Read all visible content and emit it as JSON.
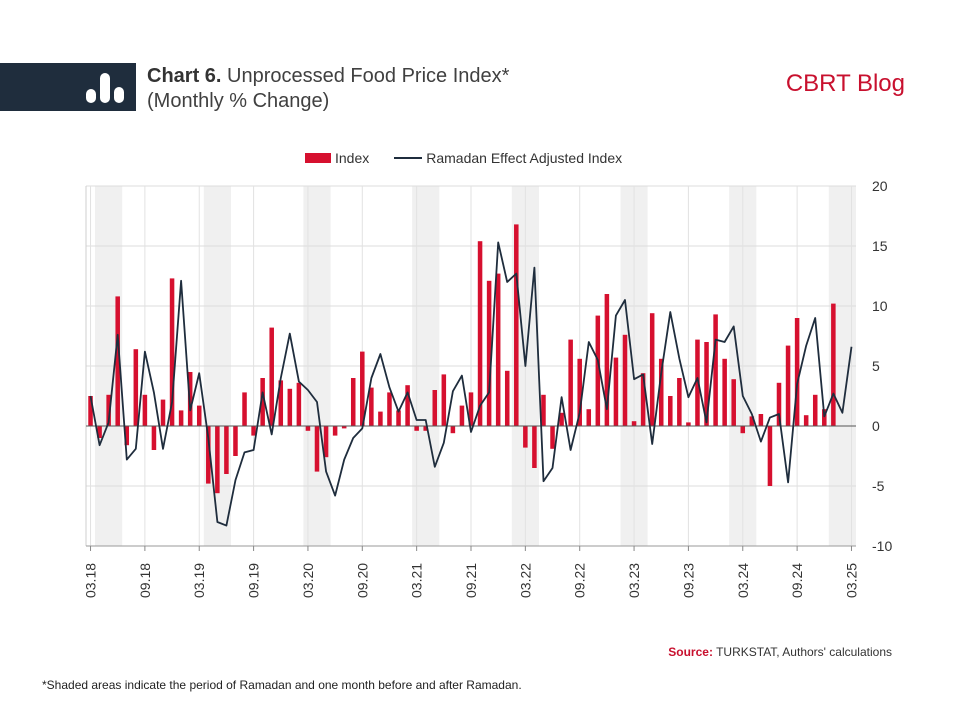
{
  "header": {
    "chart_number": "Chart 6.",
    "title": "Unprocessed Food Price Index*",
    "subtitle": "(Monthly % Change)",
    "brand": "CBRT Blog",
    "icon": "bar-chart-icon"
  },
  "legend": {
    "index_label": "Index",
    "adjusted_label": "Ramadan Effect Adjusted Index"
  },
  "footer": {
    "source_label": "Source:",
    "source_text": "TURKSTAT, Authors' calculations",
    "footnote": "*Shaded areas indicate the period of Ramadan and one month before and after Ramadan."
  },
  "colors": {
    "bars": "#d6102f",
    "line": "#1f2d3d",
    "shade": "#f0f0f0",
    "header_bar": "#1f2d3d",
    "brand": "#c8102e"
  },
  "chart_data": {
    "type": "bar",
    "x_start": "2018-03",
    "x_end": "2025-03",
    "ylim": [
      -10,
      20
    ],
    "yticks": [
      20,
      15,
      10,
      5,
      0,
      -5,
      -10
    ],
    "y_axis_side": "right",
    "grid": true,
    "legend_position": "top-center",
    "xtick_labels": [
      "03.18",
      "09.18",
      "03.19",
      "09.19",
      "03.20",
      "09.20",
      "03.21",
      "09.21",
      "03.22",
      "09.22",
      "03.23",
      "09.23",
      "03.24",
      "09.24",
      "03.25"
    ],
    "shaded_periods": [
      [
        "2018-04",
        "2018-06"
      ],
      [
        "2019-04",
        "2019-06"
      ],
      [
        "2020-03",
        "2020-05"
      ],
      [
        "2021-03",
        "2021-05"
      ],
      [
        "2022-02",
        "2022-04"
      ],
      [
        "2023-02",
        "2023-04"
      ],
      [
        "2024-02",
        "2024-04"
      ],
      [
        "2025-01",
        "2025-03"
      ]
    ],
    "series": [
      {
        "name": "Index",
        "kind": "bar",
        "values": [
          2.5,
          -1.0,
          2.6,
          10.8,
          -1.6,
          6.4,
          2.6,
          -2.0,
          2.2,
          12.3,
          1.3,
          4.5,
          1.7,
          -4.8,
          -5.6,
          -4.0,
          -2.5,
          2.8,
          -0.8,
          4.0,
          8.2,
          3.8,
          3.1,
          3.6,
          -0.4,
          -3.8,
          -2.6,
          -0.8,
          -0.2,
          4.0,
          6.2,
          3.2,
          1.2,
          2.8,
          1.3,
          3.4,
          -0.4,
          -0.4,
          3.0,
          4.3,
          -0.6,
          1.7,
          2.8,
          15.4,
          12.1,
          12.7,
          4.6,
          16.8,
          -1.8,
          -3.5,
          2.6,
          -1.9,
          1.1,
          7.2,
          5.6,
          1.4,
          9.2,
          11.0,
          5.7,
          7.6,
          0.4,
          4.4,
          9.4,
          5.6,
          2.5,
          4.0,
          0.3,
          7.2,
          7.0,
          9.3,
          5.6,
          3.9,
          -0.6,
          0.8,
          1.0,
          -5.0,
          3.6,
          6.7,
          9.0,
          0.9,
          2.6,
          1.4,
          10.2
        ]
      },
      {
        "name": "Ramadan Effect Adjusted Index",
        "kind": "line",
        "values": [
          2.5,
          -1.6,
          0.3,
          7.6,
          -2.8,
          -1.9,
          6.2,
          2.8,
          -1.9,
          2.0,
          12.1,
          1.3,
          4.4,
          -1.0,
          -8.0,
          -8.3,
          -4.5,
          -2.2,
          -2.0,
          2.8,
          -0.7,
          4.0,
          7.7,
          3.7,
          3.0,
          2.0,
          -3.8,
          -5.8,
          -2.8,
          -1.0,
          -0.2,
          4.0,
          6.0,
          3.2,
          1.2,
          2.8,
          0.5,
          0.5,
          -3.4,
          -1.4,
          2.9,
          4.2,
          -0.5,
          1.7,
          2.8,
          15.3,
          12.0,
          12.7,
          5.0,
          13.2,
          -4.6,
          -3.5,
          2.4,
          -2.0,
          1.1,
          7.0,
          5.5,
          1.4,
          9.2,
          10.5,
          3.9,
          4.3,
          -1.5,
          4.4,
          9.5,
          5.6,
          2.4,
          4.0,
          0.3,
          7.2,
          7.0,
          8.3,
          2.5,
          1.0,
          -1.3,
          0.7,
          1.0,
          -4.7,
          3.5,
          6.7,
          9.0,
          0.8,
          2.7,
          1.1,
          6.6
        ]
      }
    ]
  }
}
